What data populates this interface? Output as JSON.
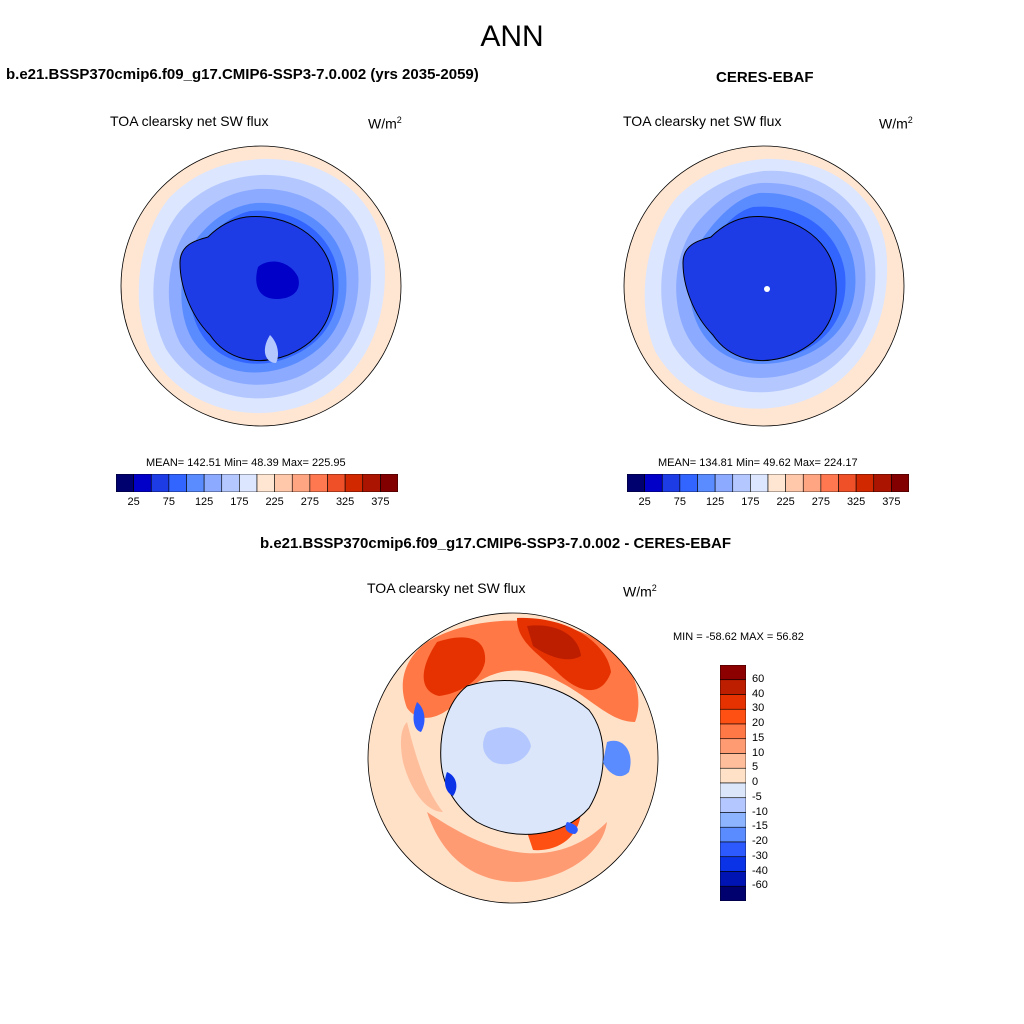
{
  "main_title": "ANN",
  "panels": [
    {
      "case_title": "b.e21.BSSP370cmip6.f09_g17.CMIP6-SSP3-7.0.002 (yrs 2035-2059)",
      "var_title": "TOA clearsky net SW flux",
      "units": "W/m",
      "units_sup": "2",
      "stats": "MEAN= 142.51  Min=  48.39  Max= 225.95"
    },
    {
      "case_title": "CERES-EBAF",
      "var_title": "TOA clearsky net SW flux",
      "units": "W/m",
      "units_sup": "2",
      "stats": "MEAN= 134.81  Min=  49.62  Max= 224.17"
    }
  ],
  "diff_panel": {
    "case_title": "b.e21.BSSP370cmip6.f09_g17.CMIP6-SSP3-7.0.002 - CERES-EBAF",
    "var_title": "TOA clearsky net SW flux",
    "units": "W/m",
    "units_sup": "2",
    "stats": "MIN = -58.62 MAX =  56.82"
  },
  "colorbar_abs": {
    "labels": [
      "25",
      "75",
      "125",
      "175",
      "225",
      "275",
      "325",
      "375"
    ],
    "colors": [
      "#00006e",
      "#0000c8",
      "#1e3ce6",
      "#3264ff",
      "#5a8cff",
      "#8caaff",
      "#b4c8ff",
      "#dce6ff",
      "#ffe6d2",
      "#ffc8aa",
      "#ffa582",
      "#ff7850",
      "#f05028",
      "#d22800",
      "#aa1400",
      "#820000"
    ]
  },
  "colorbar_diff": {
    "labels": [
      "60",
      "40",
      "30",
      "20",
      "15",
      "10",
      "5",
      "0",
      "-5",
      "-10",
      "-15",
      "-20",
      "-30",
      "-40",
      "-60"
    ],
    "colors": [
      "#8c0000",
      "#be1e00",
      "#e63200",
      "#ff5014",
      "#ff7846",
      "#ff9b73",
      "#ffbe9b",
      "#ffe1c8",
      "#dce6fa",
      "#b4c8ff",
      "#8cb4ff",
      "#5a8cff",
      "#2d5aff",
      "#0a32e6",
      "#0014b4",
      "#00006e"
    ]
  }
}
